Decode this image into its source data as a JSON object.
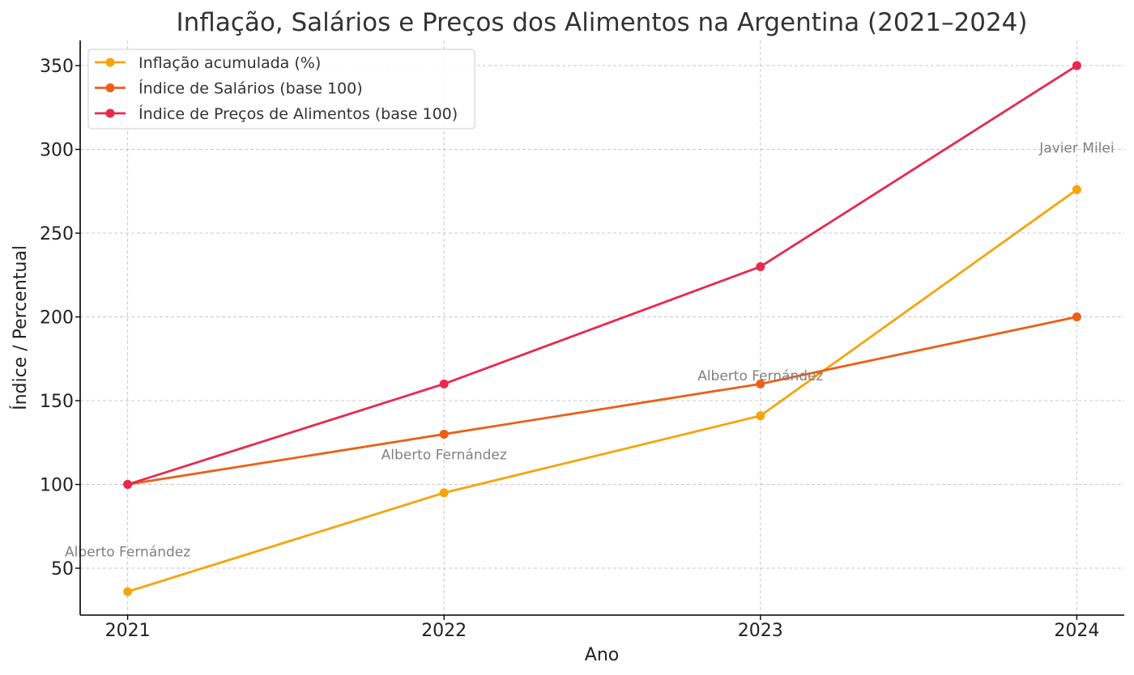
{
  "chart_data": {
    "type": "line",
    "title": "Inflação, Salários e Preços dos Alimentos na Argentina (2021–2024)",
    "xlabel": "Ano",
    "ylabel": "Índice / Percentual",
    "categories": [
      "2021",
      "2022",
      "2023",
      "2024"
    ],
    "xlim": [
      2020.85,
      2024.15
    ],
    "ylim": [
      22,
      365
    ],
    "yticks": [
      50,
      100,
      150,
      200,
      250,
      300,
      350
    ],
    "grid": true,
    "legend_position": "top-left",
    "series": [
      {
        "name": "Inflação acumulada (%)",
        "color": "#f5a50a",
        "values": [
          36,
          95,
          141,
          276
        ]
      },
      {
        "name": "Índice de Salários (base 100)",
        "color": "#ec5f17",
        "values": [
          100,
          130,
          160,
          200
        ]
      },
      {
        "name": "Índice de Preços de Alimentos (base 100)",
        "color": "#e8294e",
        "values": [
          100,
          160,
          230,
          350
        ]
      }
    ],
    "annotations": [
      {
        "text": "Alberto Fernández",
        "x": 2021,
        "y": 57
      },
      {
        "text": "Alberto Fernández",
        "x": 2022,
        "y": 115
      },
      {
        "text": "Alberto Fernández",
        "x": 2023,
        "y": 162
      },
      {
        "text": "Javier Milei",
        "x": 2024,
        "y": 298
      }
    ]
  }
}
